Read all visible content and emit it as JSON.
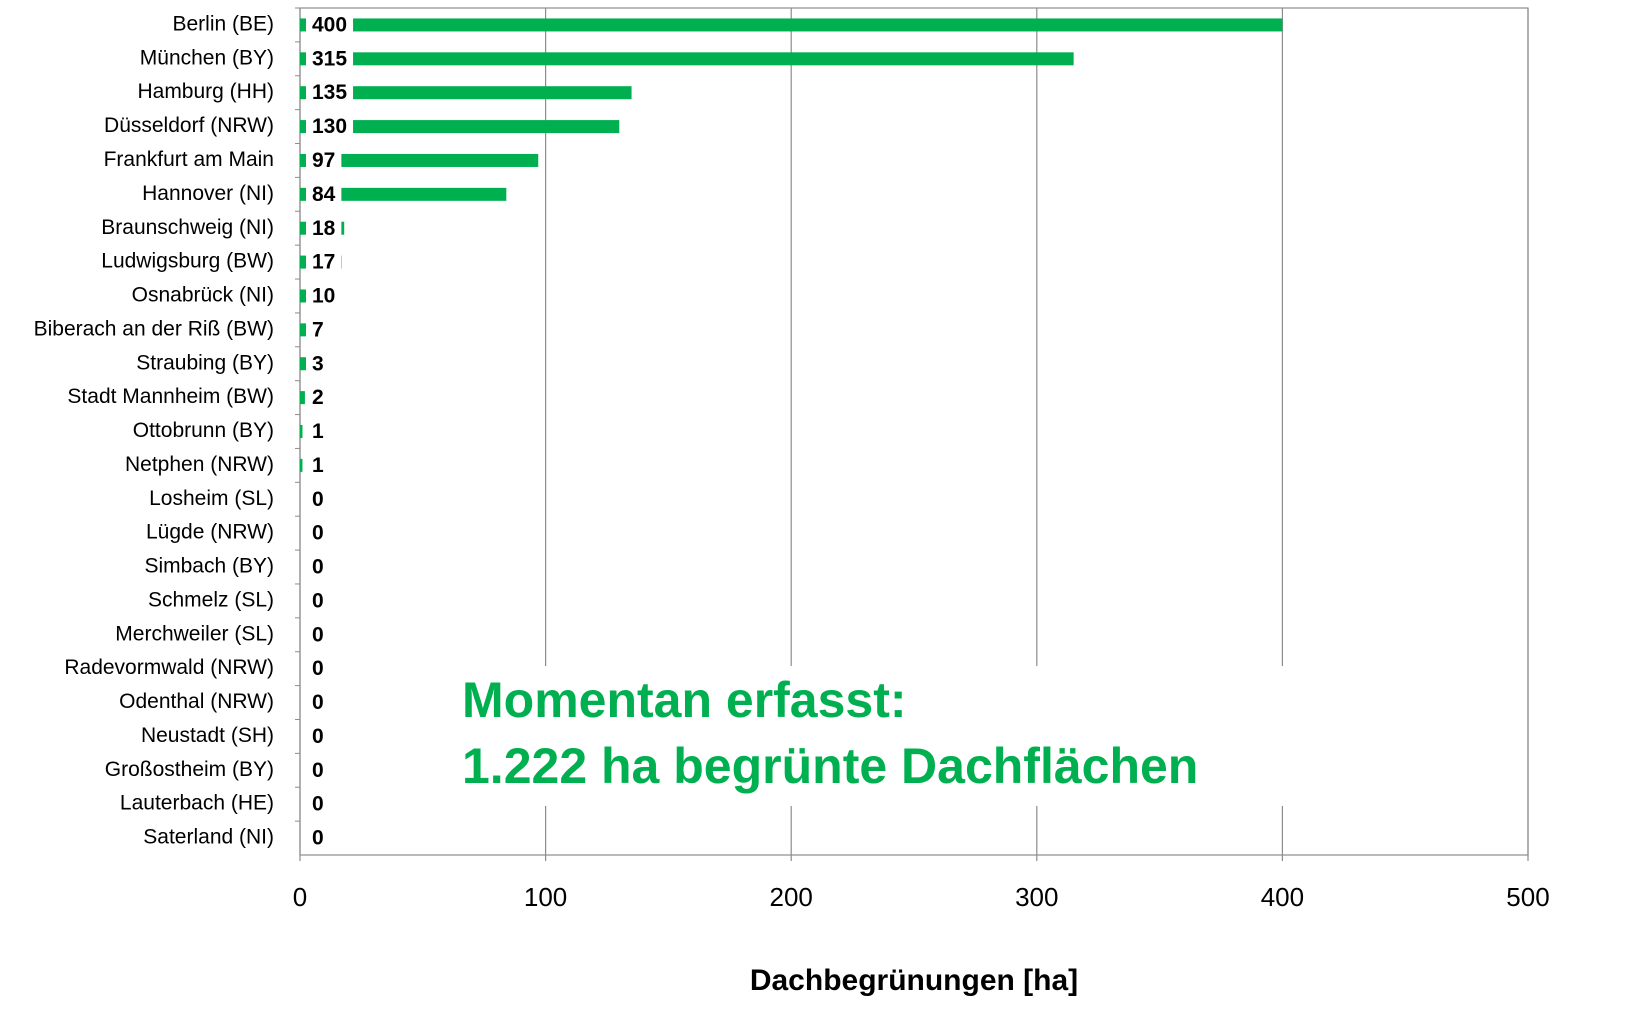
{
  "chart_data": {
    "type": "bar",
    "orientation": "horizontal",
    "categories": [
      "Berlin (BE)",
      "München (BY)",
      "Hamburg (HH)",
      "Düsseldorf (NRW)",
      "Frankfurt am Main",
      "Hannover (NI)",
      "Braunschweig (NI)",
      "Ludwigsburg (BW)",
      "Osnabrück (NI)",
      "Biberach an der Riß (BW)",
      "Straubing (BY)",
      "Stadt Mannheim (BW)",
      "Ottobrunn (BY)",
      "Netphen (NRW)",
      "Losheim (SL)",
      "Lügde (NRW)",
      "Simbach (BY)",
      "Schmelz (SL)",
      "Merchweiler (SL)",
      "Radevormwald (NRW)",
      "Odenthal (NRW)",
      "Neustadt (SH)",
      "Großostheim (BY)",
      "Lauterbach (HE)",
      "Saterland (NI)"
    ],
    "values": [
      400,
      315,
      135,
      130,
      97,
      84,
      18,
      17,
      10,
      7,
      3,
      2,
      1,
      1,
      0,
      0,
      0,
      0,
      0,
      0,
      0,
      0,
      0,
      0,
      0
    ],
    "color": "#00b050",
    "xlim": [
      0,
      500
    ],
    "xticks": [
      0,
      100,
      200,
      300,
      400,
      500
    ],
    "grid": true,
    "xlabel": "Dachbegrünungen [ha]",
    "annotations": [
      "Momentan erfasst:",
      "1.222 ha begrünte Dachflächen"
    ]
  }
}
